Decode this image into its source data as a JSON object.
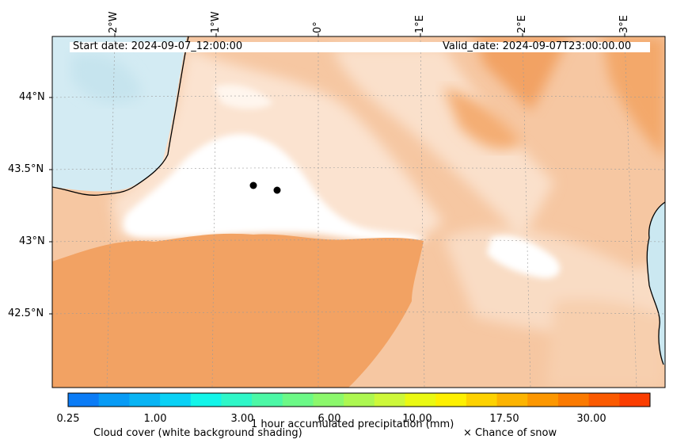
{
  "header": {
    "start_date": "Start date: 2024-09-07_12:00:00",
    "valid_date": "Valid_date: 2024-09-07T23:00:00.00"
  },
  "axes": {
    "lon_labels": [
      "2°W",
      "1°W",
      "0°",
      "1°E",
      "2°E",
      "3°E"
    ],
    "lat_labels": [
      "44°N",
      "43.5°N",
      "43°N",
      "42.5°N"
    ]
  },
  "colorbar": {
    "title": "1 hour accumulated precipitation (mm)",
    "tick_labels": [
      "0.25",
      "1.00",
      "3.00",
      "6.00",
      "10.00",
      "17.50",
      "30.00"
    ],
    "colors": [
      "#0b7cf6",
      "#079bf5",
      "#08b4f4",
      "#09d1f5",
      "#13f5e9",
      "#2ef7c8",
      "#4cf8a6",
      "#6cf987",
      "#8cf86c",
      "#adf751",
      "#cdf83a",
      "#eaf912",
      "#fdf000",
      "#fdd200",
      "#fcb400",
      "#fc9700",
      "#fb7a00",
      "#fb5a00",
      "#fb3d00"
    ]
  },
  "legend": {
    "cloud_cover": "Cloud cover (white background shading)",
    "snow": "× Chance of snow"
  },
  "colors": {
    "orange_cloud": "#f2a263",
    "light_orange": "#f8cfae",
    "sea": "#d3ebf3"
  }
}
